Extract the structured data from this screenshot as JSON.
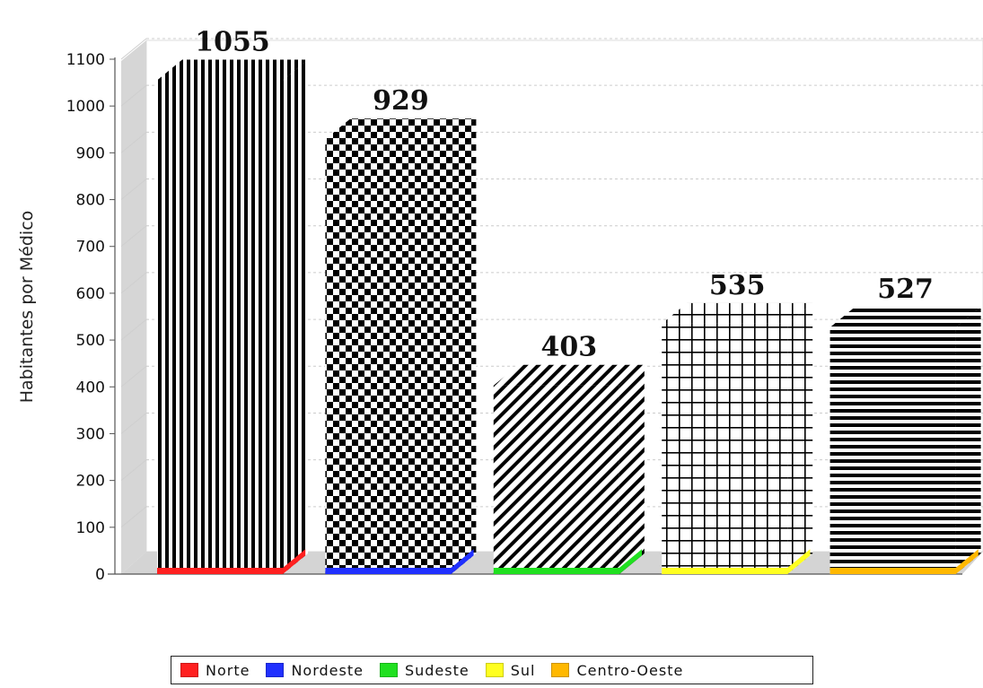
{
  "chart_data": {
    "type": "bar",
    "categories": [
      "Norte",
      "Nordeste",
      "Sudeste",
      "Sul",
      "Centro-Oeste"
    ],
    "values": [
      1055,
      929,
      403,
      535,
      527
    ],
    "title": "",
    "xlabel": "",
    "ylabel": "Habitantes por Médico",
    "ylim": [
      0,
      1100
    ],
    "yticks": [
      0,
      100,
      200,
      300,
      400,
      500,
      600,
      700,
      800,
      900,
      1000,
      1100
    ],
    "data_labels": [
      "1055",
      "929",
      "403",
      "535",
      "527"
    ],
    "colors": [
      "#ff2020",
      "#2030ff",
      "#20e020",
      "#ffff20",
      "#ffb800"
    ],
    "patterns": [
      "vertical-stripes",
      "checkerboard",
      "diagonal-stripes",
      "grid",
      "horizontal-stripes"
    ],
    "grid": true,
    "legend_position": "bottom",
    "render_3d": true
  }
}
